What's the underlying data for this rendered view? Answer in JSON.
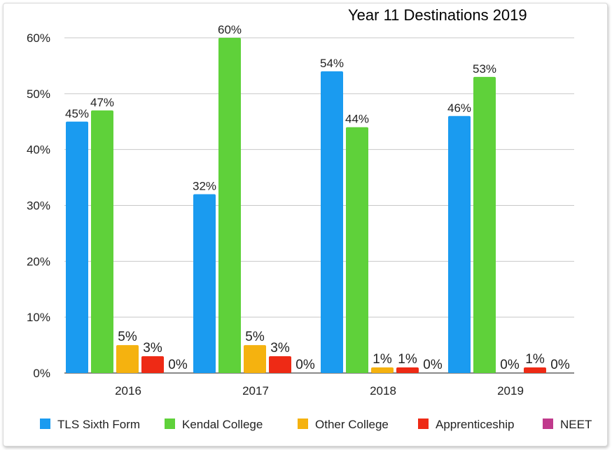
{
  "chart_data": {
    "type": "bar",
    "title": "Year 11 Destinations 2019",
    "categories": [
      "2016",
      "2017",
      "2018",
      "2019"
    ],
    "series": [
      {
        "name": "TLS Sixth Form",
        "color": "#1a9bf0",
        "values": [
          45,
          32,
          54,
          46
        ],
        "labels": [
          "45%",
          "32%",
          "54%",
          "46%"
        ]
      },
      {
        "name": "Kendal College",
        "color": "#5fd13a",
        "values": [
          47,
          60,
          44,
          53
        ],
        "labels": [
          "47%",
          "60%",
          "44%",
          "53%"
        ]
      },
      {
        "name": "Other College",
        "color": "#f5b20f",
        "values": [
          5,
          5,
          1,
          0
        ],
        "labels": [
          "5%",
          "5%",
          "1%",
          "0%"
        ]
      },
      {
        "name": "Apprenticeship",
        "color": "#ee2a15",
        "values": [
          3,
          3,
          1,
          1
        ],
        "labels": [
          "3%",
          "3%",
          "1%",
          "1%"
        ]
      },
      {
        "name": "NEET",
        "color": "#c03a8c",
        "values": [
          0,
          0,
          0,
          0
        ],
        "labels": [
          "0%",
          "0%",
          "0%",
          "0%"
        ]
      }
    ],
    "yticks": [
      "0%",
      "10%",
      "20%",
      "30%",
      "40%",
      "50%",
      "60%"
    ],
    "ylim": [
      0,
      60
    ],
    "grid": true,
    "legend_position": "bottom"
  }
}
